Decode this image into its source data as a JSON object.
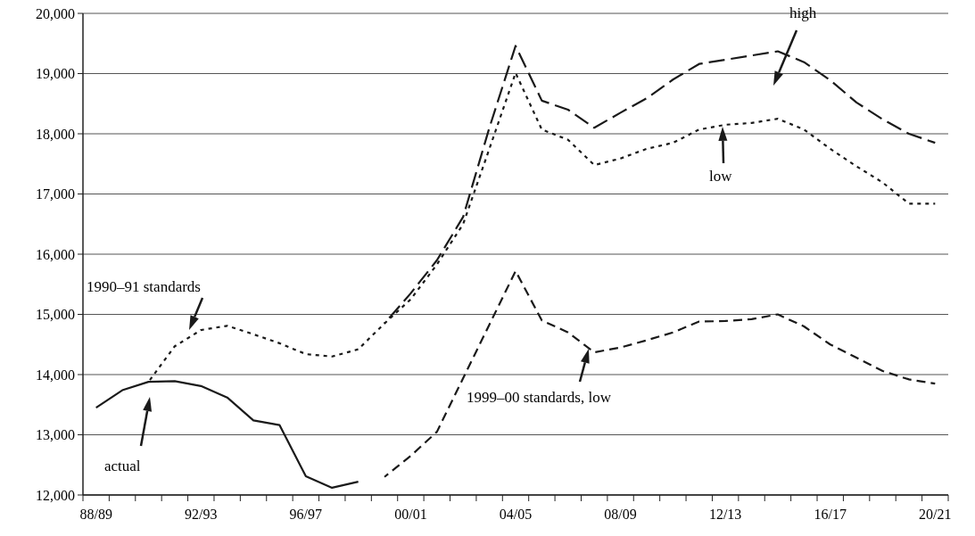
{
  "chart_data": {
    "type": "line",
    "categories": [
      "88/89",
      null,
      null,
      null,
      "92/93",
      null,
      null,
      null,
      "96/97",
      null,
      null,
      null,
      "00/01",
      null,
      null,
      null,
      "04/05",
      null,
      null,
      null,
      "08/09",
      null,
      null,
      null,
      "12/13",
      null,
      null,
      null,
      "16/17",
      null,
      null,
      null,
      "20/21"
    ],
    "series": [
      {
        "color": "#1a1a1a",
        "line_style": "solid",
        "values": [
          13450,
          13740,
          13880,
          13890,
          13810,
          13620,
          13240,
          13160,
          12310,
          12120,
          12220,
          null,
          null,
          null,
          null,
          null,
          null,
          null,
          null,
          null,
          null,
          null,
          null,
          null,
          null,
          null,
          null,
          null,
          null,
          null,
          null,
          null,
          null
        ]
      },
      {
        "color": "#1a1a1a",
        "line_style": "dotted",
        "values": [
          null,
          null,
          13880,
          14470,
          14740,
          14810,
          14670,
          14520,
          14340,
          14300,
          14420,
          14850,
          15250,
          15830,
          16500,
          17750,
          19010,
          18070,
          17900,
          17480,
          17590,
          17750,
          17850,
          18070,
          18150,
          18180,
          18250,
          18070,
          17750,
          17460,
          17190,
          16840,
          16840
        ]
      },
      {
        "color": "#1a1a1a",
        "line_style": "dashed",
        "values": [
          null,
          null,
          null,
          null,
          null,
          null,
          null,
          null,
          null,
          null,
          null,
          14850,
          15350,
          15900,
          16620,
          18100,
          19460,
          18550,
          18400,
          18100,
          18350,
          18590,
          18900,
          19160,
          19230,
          19300,
          19370,
          19190,
          18890,
          18520,
          18240,
          18000,
          17850
        ]
      },
      {
        "color": "#1a1a1a",
        "line_style": "dashed",
        "values": [
          null,
          null,
          null,
          null,
          null,
          null,
          null,
          null,
          null,
          null,
          null,
          12300,
          12650,
          13050,
          13940,
          14830,
          15720,
          14900,
          14700,
          14370,
          14450,
          14570,
          14700,
          14880,
          14890,
          14920,
          15000,
          14800,
          14500,
          14280,
          14060,
          13920,
          13850
        ]
      }
    ],
    "annotations": [
      "high",
      "low",
      "1990–91 standards",
      "1999–00 standards, low",
      "actual"
    ],
    "ylim": [
      12000,
      20000
    ],
    "yticks": [
      {
        "value": 12000,
        "label": "12,000"
      },
      {
        "value": 13000,
        "label": "13,000"
      },
      {
        "value": 14000,
        "label": "14,000"
      },
      {
        "value": 15000,
        "label": "15,000"
      },
      {
        "value": 16000,
        "label": "16,000"
      },
      {
        "value": 17000,
        "label": "17,000"
      },
      {
        "value": 18000,
        "label": "18,000"
      },
      {
        "value": 19000,
        "label": "19,000"
      },
      {
        "value": 20000,
        "label": "20,000"
      }
    ],
    "grid": "y"
  }
}
